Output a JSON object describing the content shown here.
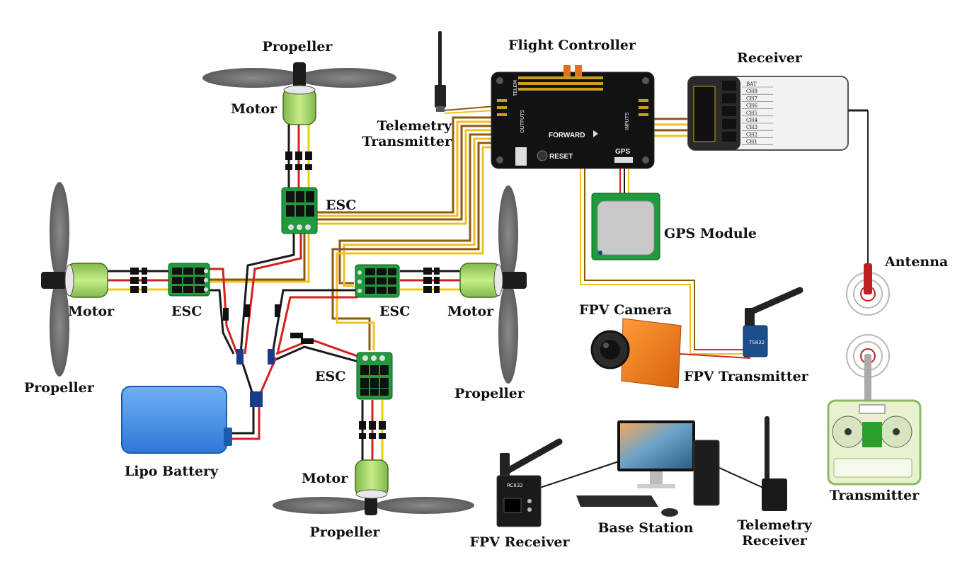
{
  "labels": {
    "propeller_top": "Propeller",
    "motor_top": "Motor",
    "esc_top": "ESC",
    "motor_left": "Motor",
    "esc_left": "ESC",
    "propeller_left": "Propeller",
    "esc_right": "ESC",
    "motor_right": "Motor",
    "propeller_right": "Propeller",
    "esc_bottom": "ESC",
    "motor_bottom": "Motor",
    "propeller_bottom": "Propeller",
    "lipo_battery": "Lipo Battery",
    "telemetry_transmitter_l1": "Telemetry",
    "telemetry_transmitter_l2": "Transmitter",
    "flight_controller": "Flight Controller",
    "receiver": "Receiver",
    "gps_module": "GPS Module",
    "antenna": "Antenna",
    "fpv_camera": "FPV Camera",
    "fpv_transmitter": "FPV Transmitter",
    "transmitter": "Transmitter",
    "fpv_receiver": "FPV Receiver",
    "base_station": "Base Station",
    "telemetry_receiver_l1": "Telemetry",
    "telemetry_receiver_l2": "Receiver"
  },
  "device_text": {
    "fc_forward": "FORWARD",
    "fc_reset": "RESET",
    "fc_gps": "GPS",
    "fc_outputs": "OUTPUTS",
    "fc_inputs": "INPUTS",
    "fc_telem": "TELEM",
    "receiver_channels": [
      "BAT",
      "CH8",
      "CH7",
      "CH6",
      "CH5",
      "CH4",
      "CH3",
      "CH2",
      "CH1"
    ],
    "fpv_tx_model": "TS832",
    "fpv_rx_model": "RC832"
  },
  "colors": {
    "motor_green": "#a8d86a",
    "esc_green": "#1f9a3c",
    "battery_blue": "#3a86e0",
    "camera_orange": "#f07a1a",
    "wire_red": "#d42020",
    "wire_black": "#1a1a1a",
    "wire_yellow": "#e8d000",
    "signal_brown": "#8a5a10",
    "signal_gold": "#f0c020"
  }
}
